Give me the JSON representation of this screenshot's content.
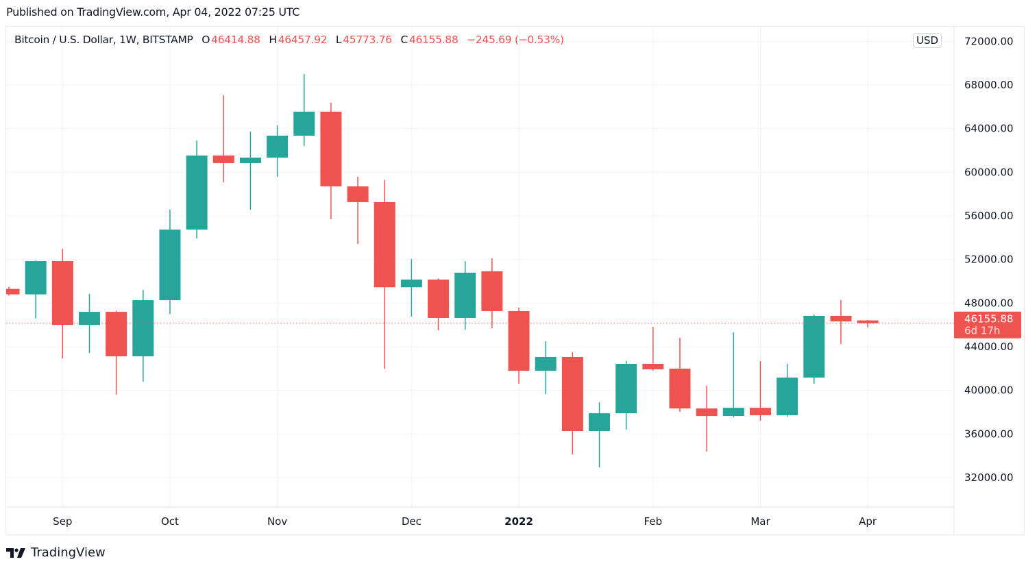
{
  "published": "Published on TradingView.com, Apr 04, 2022 07:25 UTC",
  "legend": {
    "symbol": "Bitcoin / U.S. Dollar, 1W, BITSTAMP",
    "o_label": "O",
    "o": "46414.88",
    "h_label": "H",
    "h": "46457.92",
    "l_label": "L",
    "l": "45773.76",
    "c_label": "C",
    "c": "46155.88",
    "change": "−245.69 (−0.53%)"
  },
  "currency_button": "USD",
  "last_price": {
    "value": "46155.88",
    "countdown": "6d 17h"
  },
  "brand": "TradingView",
  "colors": {
    "up": "#26a69a",
    "down": "#ef5350",
    "grid": "#f0f3fa",
    "text": "#131722"
  },
  "chart_data": {
    "type": "candlestick",
    "title": "Bitcoin / U.S. Dollar, 1W, BITSTAMP",
    "ylim": [
      30500,
      73500
    ],
    "y_ticks": [
      "72000.00",
      "68000.00",
      "64000.00",
      "60000.00",
      "56000.00",
      "52000.00",
      "48000.00",
      "44000.00",
      "40000.00",
      "36000.00",
      "32000.00"
    ],
    "x_ticks": [
      {
        "label": "Sep",
        "index": 2,
        "bold": false
      },
      {
        "label": "Oct",
        "index": 6,
        "bold": false
      },
      {
        "label": "Nov",
        "index": 10,
        "bold": false
      },
      {
        "label": "Dec",
        "index": 15,
        "bold": false
      },
      {
        "label": "2022",
        "index": 19,
        "bold": true
      },
      {
        "label": "Feb",
        "index": 24,
        "bold": false
      },
      {
        "label": "Mar",
        "index": 28,
        "bold": false
      },
      {
        "label": "Apr",
        "index": 32,
        "bold": false
      }
    ],
    "candles": [
      {
        "o": 49300,
        "h": 49500,
        "l": 48700,
        "c": 48800
      },
      {
        "o": 48800,
        "h": 51900,
        "l": 46600,
        "c": 51850
      },
      {
        "o": 51850,
        "h": 52980,
        "l": 42930,
        "c": 46000
      },
      {
        "o": 46000,
        "h": 48840,
        "l": 43430,
        "c": 47200
      },
      {
        "o": 47200,
        "h": 47300,
        "l": 39600,
        "c": 43120
      },
      {
        "o": 43120,
        "h": 49210,
        "l": 40800,
        "c": 48270
      },
      {
        "o": 48270,
        "h": 56570,
        "l": 47000,
        "c": 54740
      },
      {
        "o": 54740,
        "h": 62910,
        "l": 53930,
        "c": 61530
      },
      {
        "o": 61530,
        "h": 67060,
        "l": 59080,
        "c": 60840
      },
      {
        "o": 60840,
        "h": 63730,
        "l": 56570,
        "c": 61340
      },
      {
        "o": 61340,
        "h": 64290,
        "l": 59580,
        "c": 63350
      },
      {
        "o": 63350,
        "h": 69000,
        "l": 62400,
        "c": 65550
      },
      {
        "o": 65550,
        "h": 66370,
        "l": 55690,
        "c": 58700
      },
      {
        "o": 58700,
        "h": 59580,
        "l": 53420,
        "c": 57260
      },
      {
        "o": 57260,
        "h": 59270,
        "l": 41990,
        "c": 49450
      },
      {
        "o": 49450,
        "h": 52040,
        "l": 46760,
        "c": 50160
      },
      {
        "o": 50160,
        "h": 50250,
        "l": 45510,
        "c": 46640
      },
      {
        "o": 46640,
        "h": 51850,
        "l": 45570,
        "c": 50790
      },
      {
        "o": 50920,
        "h": 52100,
        "l": 45700,
        "c": 47270
      },
      {
        "o": 47270,
        "h": 47580,
        "l": 40610,
        "c": 41800
      },
      {
        "o": 41800,
        "h": 44500,
        "l": 39660,
        "c": 43060
      },
      {
        "o": 43060,
        "h": 43500,
        "l": 34130,
        "c": 36270
      },
      {
        "o": 36270,
        "h": 38910,
        "l": 32940,
        "c": 37900
      },
      {
        "o": 37900,
        "h": 42680,
        "l": 36400,
        "c": 42430
      },
      {
        "o": 42430,
        "h": 45820,
        "l": 41800,
        "c": 41930
      },
      {
        "o": 41990,
        "h": 44820,
        "l": 38030,
        "c": 38340
      },
      {
        "o": 38340,
        "h": 40420,
        "l": 34390,
        "c": 37650
      },
      {
        "o": 37650,
        "h": 45320,
        "l": 37530,
        "c": 38400
      },
      {
        "o": 38400,
        "h": 42680,
        "l": 37210,
        "c": 37720
      },
      {
        "o": 37720,
        "h": 42430,
        "l": 37590,
        "c": 41170
      },
      {
        "o": 41170,
        "h": 46950,
        "l": 40610,
        "c": 46830
      },
      {
        "o": 46830,
        "h": 48270,
        "l": 44250,
        "c": 46320
      },
      {
        "o": 46414.88,
        "h": 46457.92,
        "l": 45773.76,
        "c": 46155.88
      }
    ]
  }
}
